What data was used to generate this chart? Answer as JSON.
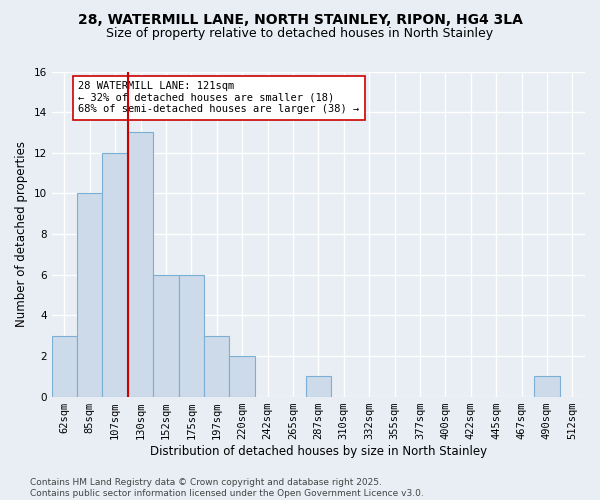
{
  "title_line1": "28, WATERMILL LANE, NORTH STAINLEY, RIPON, HG4 3LA",
  "title_line2": "Size of property relative to detached houses in North Stainley",
  "xlabel": "Distribution of detached houses by size in North Stainley",
  "ylabel": "Number of detached properties",
  "bin_labels": [
    "62sqm",
    "85sqm",
    "107sqm",
    "130sqm",
    "152sqm",
    "175sqm",
    "197sqm",
    "220sqm",
    "242sqm",
    "265sqm",
    "287sqm",
    "310sqm",
    "332sqm",
    "355sqm",
    "377sqm",
    "400sqm",
    "422sqm",
    "445sqm",
    "467sqm",
    "490sqm",
    "512sqm"
  ],
  "bar_values": [
    3,
    10,
    12,
    13,
    6,
    6,
    3,
    2,
    0,
    0,
    1,
    0,
    0,
    0,
    0,
    0,
    0,
    0,
    0,
    1,
    0
  ],
  "bar_color": "#ccdaea",
  "bar_edge_color": "#7bafd4",
  "vline_pos": 2.5,
  "vline_color": "#cc0000",
  "annotation_text": "28 WATERMILL LANE: 121sqm\n← 32% of detached houses are smaller (18)\n68% of semi-detached houses are larger (38) →",
  "annotation_box_edge": "#cc0000",
  "annotation_box_face": "#ffffff",
  "ylim": [
    0,
    16
  ],
  "yticks": [
    0,
    2,
    4,
    6,
    8,
    10,
    12,
    14,
    16
  ],
  "footnote": "Contains HM Land Registry data © Crown copyright and database right 2025.\nContains public sector information licensed under the Open Government Licence v3.0.",
  "bg_color": "#e8eef4",
  "plot_bg_color": "#e8eef4",
  "grid_color": "#ffffff",
  "title_fontsize": 10,
  "subtitle_fontsize": 9,
  "axis_label_fontsize": 8.5,
  "tick_fontsize": 7.5,
  "annotation_fontsize": 7.5,
  "footnote_fontsize": 6.5
}
